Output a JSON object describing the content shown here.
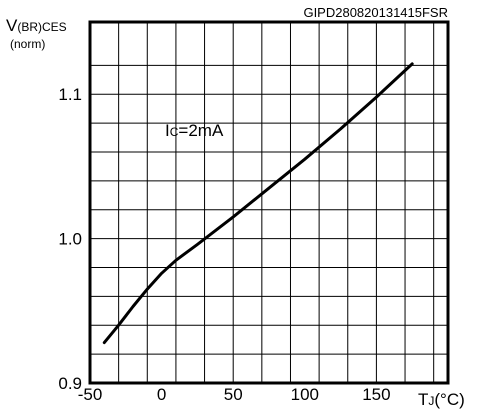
{
  "code_label": "GIPD280820131415FSR",
  "chart_data": {
    "type": "line",
    "ylabel_main": "V",
    "ylabel_sub": "(BR)CES",
    "ylabel_norm": "(norm)",
    "xlabel_main": "T",
    "xlabel_sub": "J",
    "xlabel_unit": "(°C)",
    "annotation_main": "I",
    "annotation_sub": "C",
    "annotation_rest": "=2mA",
    "xlim": [
      -50,
      200
    ],
    "ylim": [
      0.9,
      1.15
    ],
    "x_ticks": [
      -50,
      0,
      50,
      100,
      150
    ],
    "x_tick_labels": [
      "-50",
      "0",
      "50",
      "100",
      "150"
    ],
    "y_ticks": [
      0.9,
      1.0,
      1.1
    ],
    "y_tick_labels": [
      "0.9",
      "1.0",
      "1.1"
    ],
    "x_grid_step": 20,
    "y_grid_step": 0.02,
    "grid": true,
    "series": [
      {
        "x": [
          -40,
          -30,
          -20,
          -10,
          0,
          10,
          25,
          50,
          75,
          100,
          125,
          150,
          175
        ],
        "y": [
          0.928,
          0.94,
          0.953,
          0.965,
          0.976,
          0.985,
          0.996,
          1.015,
          1.035,
          1.055,
          1.076,
          1.098,
          1.121
        ]
      }
    ]
  }
}
